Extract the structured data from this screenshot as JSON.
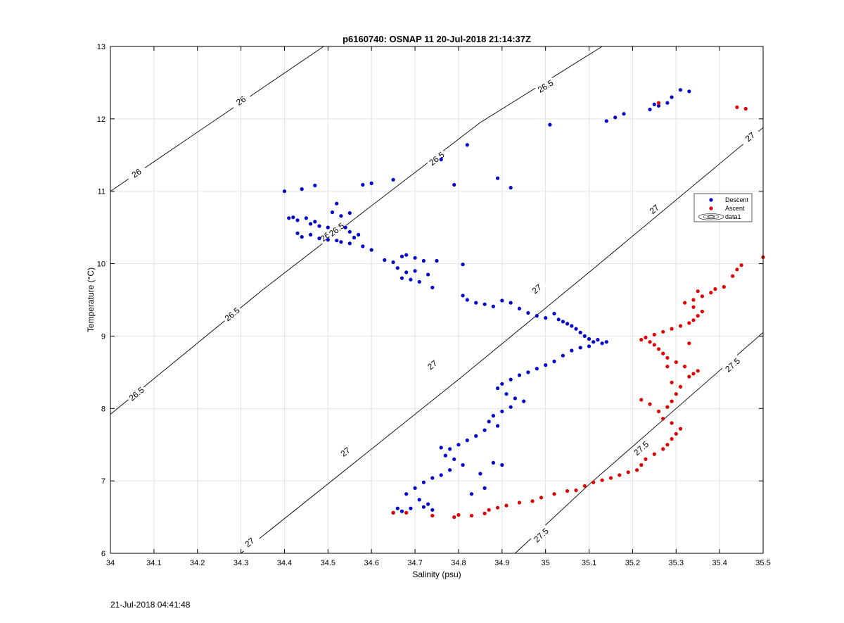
{
  "chart_data": {
    "type": "scatter",
    "title": "p6160740: OSNAP 11 20-Jul-2018 21:14:37Z",
    "xlabel": "Salinity (psu)",
    "ylabel": "Temperature (°C)",
    "xlim": [
      34,
      35.5
    ],
    "ylim": [
      6,
      13
    ],
    "grid": true,
    "legend_position": "right",
    "xticks": [
      "34",
      "34.1",
      "34.2",
      "34.3",
      "34.4",
      "34.5",
      "34.6",
      "34.7",
      "34.8",
      "34.9",
      "35",
      "35.1",
      "35.2",
      "35.3",
      "35.4",
      "35.5"
    ],
    "yticks": [
      "6",
      "7",
      "8",
      "9",
      "10",
      "11",
      "12",
      "13"
    ],
    "contours": [
      {
        "level": "26",
        "points": [
          [
            34.0,
            11.0
          ],
          [
            34.49,
            13.0
          ]
        ],
        "labels": [
          [
            34.06,
            11.25
          ],
          [
            34.3,
            12.25
          ]
        ]
      },
      {
        "level": "26.5",
        "points": [
          [
            34.0,
            7.92
          ],
          [
            34.35,
            9.64
          ],
          [
            34.6,
            10.8
          ],
          [
            34.85,
            11.95
          ],
          [
            35.13,
            13.0
          ]
        ],
        "labels": [
          [
            34.06,
            8.2
          ],
          [
            34.28,
            9.3
          ],
          [
            34.5,
            10.4
          ],
          [
            34.52,
            10.47
          ],
          [
            34.75,
            11.45
          ],
          [
            35.0,
            12.45
          ]
        ]
      },
      {
        "level": "27",
        "points": [
          [
            34.3,
            6.0
          ],
          [
            34.55,
            7.2
          ],
          [
            34.8,
            8.4
          ],
          [
            35.1,
            9.88
          ],
          [
            35.5,
            11.88
          ]
        ],
        "labels": [
          [
            34.32,
            6.15
          ],
          [
            34.54,
            7.4
          ],
          [
            34.74,
            8.6
          ],
          [
            34.98,
            9.65
          ],
          [
            35.25,
            10.75
          ],
          [
            35.47,
            11.75
          ]
        ]
      },
      {
        "level": "27.5",
        "points": [
          [
            34.93,
            6.0
          ],
          [
            35.1,
            6.95
          ],
          [
            35.3,
            8.0
          ],
          [
            35.5,
            9.05
          ]
        ],
        "labels": [
          [
            34.99,
            6.25
          ],
          [
            35.22,
            7.45
          ],
          [
            35.43,
            8.6
          ]
        ]
      }
    ],
    "series": [
      {
        "name": "Descent",
        "color": "#0000cc",
        "points": [
          [
            34.4,
            11.0
          ],
          [
            34.44,
            11.03
          ],
          [
            34.47,
            11.08
          ],
          [
            34.58,
            11.09
          ],
          [
            34.6,
            11.11
          ],
          [
            34.65,
            11.16
          ],
          [
            34.76,
            11.44
          ],
          [
            34.82,
            11.64
          ],
          [
            34.79,
            11.09
          ],
          [
            34.89,
            11.18
          ],
          [
            34.92,
            11.05
          ],
          [
            35.01,
            11.92
          ],
          [
            35.14,
            11.97
          ],
          [
            35.16,
            12.02
          ],
          [
            35.18,
            12.07
          ],
          [
            35.24,
            12.13
          ],
          [
            35.26,
            12.18
          ],
          [
            35.28,
            12.22
          ],
          [
            35.29,
            12.3
          ],
          [
            35.31,
            12.4
          ],
          [
            35.33,
            12.38
          ],
          [
            35.25,
            12.2
          ],
          [
            34.41,
            10.63
          ],
          [
            34.42,
            10.64
          ],
          [
            34.43,
            10.6
          ],
          [
            34.45,
            10.63
          ],
          [
            34.46,
            10.55
          ],
          [
            34.47,
            10.58
          ],
          [
            34.48,
            10.52
          ],
          [
            34.5,
            10.5
          ],
          [
            34.51,
            10.71
          ],
          [
            34.52,
            10.83
          ],
          [
            34.53,
            10.66
          ],
          [
            34.55,
            10.7
          ],
          [
            34.43,
            10.42
          ],
          [
            34.44,
            10.37
          ],
          [
            34.46,
            10.4
          ],
          [
            34.48,
            10.35
          ],
          [
            34.5,
            10.33
          ],
          [
            34.52,
            10.32
          ],
          [
            34.53,
            10.3
          ],
          [
            34.55,
            10.28
          ],
          [
            34.56,
            10.36
          ],
          [
            34.55,
            10.44
          ],
          [
            34.57,
            10.4
          ],
          [
            34.54,
            10.5
          ],
          [
            34.58,
            10.24
          ],
          [
            34.6,
            10.19
          ],
          [
            34.63,
            10.05
          ],
          [
            34.65,
            10.02
          ],
          [
            34.67,
            10.1
          ],
          [
            34.68,
            10.12
          ],
          [
            34.7,
            10.08
          ],
          [
            34.72,
            10.04
          ],
          [
            34.75,
            10.04
          ],
          [
            34.66,
            9.94
          ],
          [
            34.68,
            9.88
          ],
          [
            34.7,
            9.9
          ],
          [
            34.67,
            9.8
          ],
          [
            34.69,
            9.78
          ],
          [
            34.71,
            9.75
          ],
          [
            34.73,
            9.85
          ],
          [
            34.74,
            9.67
          ],
          [
            34.81,
            9.99
          ],
          [
            34.81,
            9.56
          ],
          [
            34.82,
            9.5
          ],
          [
            34.84,
            9.46
          ],
          [
            34.86,
            9.44
          ],
          [
            34.88,
            9.41
          ],
          [
            34.9,
            9.49
          ],
          [
            34.92,
            9.46
          ],
          [
            34.94,
            9.38
          ],
          [
            34.96,
            9.32
          ],
          [
            34.98,
            9.28
          ],
          [
            35.0,
            9.25
          ],
          [
            35.02,
            9.31
          ],
          [
            35.03,
            9.23
          ],
          [
            35.04,
            9.2
          ],
          [
            35.05,
            9.17
          ],
          [
            35.06,
            9.14
          ],
          [
            35.07,
            9.1
          ],
          [
            35.08,
            9.05
          ],
          [
            35.09,
            9.0
          ],
          [
            35.1,
            8.96
          ],
          [
            35.11,
            8.92
          ],
          [
            35.12,
            8.95
          ],
          [
            35.13,
            8.9
          ],
          [
            35.14,
            8.92
          ],
          [
            35.1,
            8.86
          ],
          [
            35.08,
            8.84
          ],
          [
            35.06,
            8.8
          ],
          [
            35.04,
            8.73
          ],
          [
            35.02,
            8.65
          ],
          [
            35.0,
            8.6
          ],
          [
            34.98,
            8.55
          ],
          [
            34.96,
            8.5
          ],
          [
            34.94,
            8.46
          ],
          [
            34.92,
            8.4
          ],
          [
            34.9,
            8.34
          ],
          [
            34.89,
            8.28
          ],
          [
            34.91,
            8.2
          ],
          [
            34.93,
            8.14
          ],
          [
            34.95,
            8.1
          ],
          [
            34.92,
            8.02
          ],
          [
            34.9,
            7.96
          ],
          [
            34.88,
            7.9
          ],
          [
            34.87,
            7.82
          ],
          [
            34.89,
            7.76
          ],
          [
            34.86,
            7.7
          ],
          [
            34.84,
            7.62
          ],
          [
            34.82,
            7.56
          ],
          [
            34.8,
            7.5
          ],
          [
            34.78,
            7.44
          ],
          [
            34.76,
            7.46
          ],
          [
            34.77,
            7.35
          ],
          [
            34.79,
            7.3
          ],
          [
            34.81,
            7.22
          ],
          [
            34.78,
            7.15
          ],
          [
            34.76,
            7.08
          ],
          [
            34.74,
            7.04
          ],
          [
            34.72,
            6.98
          ],
          [
            34.7,
            6.9
          ],
          [
            34.68,
            6.82
          ],
          [
            34.71,
            6.74
          ],
          [
            34.73,
            6.68
          ],
          [
            34.69,
            6.62
          ],
          [
            34.67,
            6.58
          ],
          [
            34.65,
            6.56
          ],
          [
            34.66,
            6.62
          ],
          [
            34.85,
            7.1
          ],
          [
            34.88,
            7.25
          ],
          [
            34.9,
            7.22
          ],
          [
            34.83,
            6.82
          ],
          [
            34.86,
            6.9
          ],
          [
            34.74,
            6.6
          ],
          [
            34.72,
            6.64
          ]
        ]
      },
      {
        "name": "Ascent",
        "color": "#dd0000",
        "points": [
          [
            34.65,
            6.56
          ],
          [
            34.68,
            6.56
          ],
          [
            34.74,
            6.52
          ],
          [
            34.79,
            6.5
          ],
          [
            34.8,
            6.53
          ],
          [
            34.83,
            6.52
          ],
          [
            34.86,
            6.55
          ],
          [
            34.87,
            6.6
          ],
          [
            34.89,
            6.63
          ],
          [
            34.91,
            6.66
          ],
          [
            34.94,
            6.7
          ],
          [
            34.97,
            6.72
          ],
          [
            34.99,
            6.77
          ],
          [
            35.02,
            6.82
          ],
          [
            35.05,
            6.86
          ],
          [
            35.07,
            6.87
          ],
          [
            35.09,
            6.93
          ],
          [
            35.11,
            6.98
          ],
          [
            35.13,
            7.01
          ],
          [
            35.15,
            7.04
          ],
          [
            35.17,
            7.08
          ],
          [
            35.19,
            7.12
          ],
          [
            35.21,
            7.15
          ],
          [
            35.22,
            7.22
          ],
          [
            35.23,
            7.3
          ],
          [
            35.25,
            7.37
          ],
          [
            35.27,
            7.44
          ],
          [
            35.28,
            7.5
          ],
          [
            35.29,
            7.58
          ],
          [
            35.3,
            7.65
          ],
          [
            35.31,
            7.72
          ],
          [
            35.29,
            7.8
          ],
          [
            35.27,
            7.86
          ],
          [
            35.26,
            7.96
          ],
          [
            35.28,
            8.02
          ],
          [
            35.29,
            8.1
          ],
          [
            35.24,
            8.06
          ],
          [
            35.22,
            8.12
          ],
          [
            35.3,
            8.2
          ],
          [
            35.31,
            8.3
          ],
          [
            35.29,
            8.36
          ],
          [
            35.33,
            8.44
          ],
          [
            35.34,
            8.48
          ],
          [
            35.35,
            8.52
          ],
          [
            35.32,
            8.58
          ],
          [
            35.3,
            8.64
          ],
          [
            35.28,
            8.7
          ],
          [
            35.27,
            8.76
          ],
          [
            35.26,
            8.82
          ],
          [
            35.25,
            8.88
          ],
          [
            35.24,
            8.92
          ],
          [
            35.22,
            8.95
          ],
          [
            35.23,
            8.98
          ],
          [
            35.25,
            9.02
          ],
          [
            35.27,
            9.06
          ],
          [
            35.29,
            9.1
          ],
          [
            35.31,
            9.14
          ],
          [
            35.33,
            9.18
          ],
          [
            35.34,
            9.22
          ],
          [
            35.35,
            9.28
          ],
          [
            35.36,
            9.34
          ],
          [
            35.34,
            9.4
          ],
          [
            35.32,
            9.46
          ],
          [
            35.34,
            9.5
          ],
          [
            35.36,
            9.55
          ],
          [
            35.38,
            9.6
          ],
          [
            35.35,
            9.62
          ],
          [
            35.39,
            9.65
          ],
          [
            35.41,
            9.68
          ],
          [
            35.43,
            9.83
          ],
          [
            35.44,
            9.92
          ],
          [
            35.45,
            9.98
          ],
          [
            35.5,
            10.09
          ],
          [
            35.44,
            12.16
          ],
          [
            35.46,
            12.14
          ],
          [
            35.26,
            12.22
          ],
          [
            35.33,
            8.9
          ],
          [
            35.28,
            8.58
          ]
        ]
      }
    ],
    "legend": {
      "entries": [
        "Descent",
        "Ascent",
        "data1"
      ]
    }
  },
  "footer": {
    "timestamp": "21-Jul-2018 04:41:48"
  }
}
